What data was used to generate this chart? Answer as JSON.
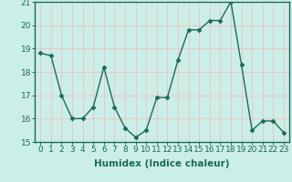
{
  "x": [
    0,
    1,
    2,
    3,
    4,
    5,
    6,
    7,
    8,
    9,
    10,
    11,
    12,
    13,
    14,
    15,
    16,
    17,
    18,
    19,
    20,
    21,
    22,
    23
  ],
  "y": [
    18.8,
    18.7,
    17.0,
    16.0,
    16.0,
    16.5,
    18.2,
    16.5,
    15.6,
    15.2,
    15.5,
    16.9,
    16.9,
    18.5,
    19.8,
    19.8,
    20.2,
    20.2,
    21.0,
    18.3,
    15.5,
    15.9,
    15.9,
    15.4
  ],
  "line_color": "#1a6b5a",
  "marker_color": "#1a6b5a",
  "bg_color": "#cceee8",
  "grid_color": "#f0c0c0",
  "xlabel": "Humidex (Indice chaleur)",
  "ylim": [
    15,
    21
  ],
  "xlim": [
    -0.5,
    23.5
  ],
  "yticks": [
    15,
    16,
    17,
    18,
    19,
    20,
    21
  ],
  "xticks": [
    0,
    1,
    2,
    3,
    4,
    5,
    6,
    7,
    8,
    9,
    10,
    11,
    12,
    13,
    14,
    15,
    16,
    17,
    18,
    19,
    20,
    21,
    22,
    23
  ],
  "xlabel_fontsize": 7.5,
  "tick_fontsize": 6.5,
  "line_width": 1.0,
  "marker_size": 2.5
}
